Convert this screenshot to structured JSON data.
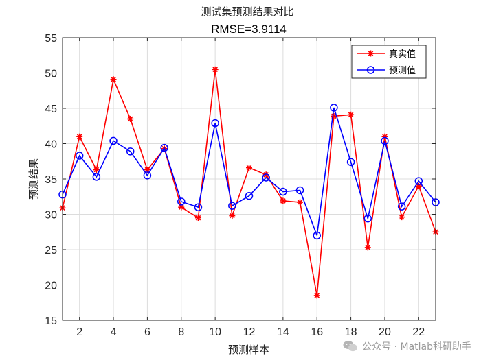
{
  "chart_data": {
    "type": "line",
    "title": "测试集预测结果对比",
    "subtitle": "RMSE=3.9114",
    "xlabel": "预测样本",
    "ylabel": "预测结果",
    "xlim": [
      1,
      23
    ],
    "ylim": [
      15,
      55
    ],
    "xticks": [
      2,
      4,
      6,
      8,
      10,
      12,
      14,
      16,
      18,
      20,
      22
    ],
    "yticks": [
      15,
      20,
      25,
      30,
      35,
      40,
      45,
      50,
      55
    ],
    "grid": true,
    "legend_position": "top-right",
    "x": [
      1,
      2,
      3,
      4,
      5,
      6,
      7,
      8,
      9,
      10,
      11,
      12,
      13,
      14,
      15,
      16,
      17,
      18,
      19,
      20,
      21,
      22,
      23
    ],
    "series": [
      {
        "name": "真实值",
        "color": "#ff0000",
        "marker": "asterisk",
        "values": [
          30.9,
          41.0,
          36.3,
          49.1,
          43.5,
          36.3,
          39.3,
          31.0,
          29.5,
          50.5,
          29.8,
          36.6,
          35.6,
          31.9,
          31.7,
          18.5,
          43.9,
          44.1,
          25.3,
          41.0,
          29.6,
          34.0,
          27.5
        ]
      },
      {
        "name": "预测值",
        "color": "#0000ff",
        "marker": "circle",
        "values": [
          32.8,
          38.3,
          35.3,
          40.4,
          38.9,
          35.5,
          39.4,
          31.8,
          31.0,
          42.9,
          31.2,
          32.6,
          35.2,
          33.2,
          33.4,
          27.0,
          45.1,
          37.4,
          29.4,
          40.4,
          31.1,
          34.7,
          31.7
        ]
      }
    ]
  },
  "watermark": {
    "text": "公众号 · Matlab科研助手",
    "icon": "wechat-icon"
  }
}
